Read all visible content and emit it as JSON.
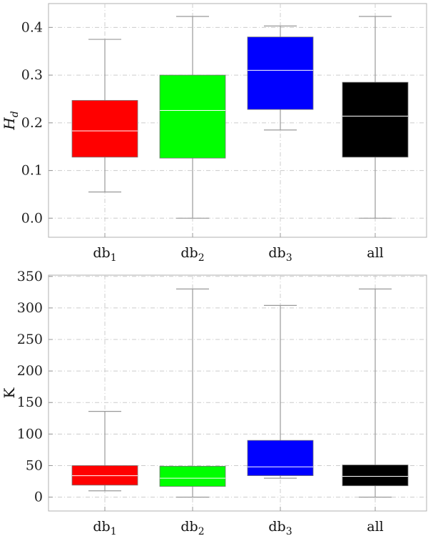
{
  "chart_data": [
    {
      "type": "box",
      "ylabel": "H",
      "ylabel_sub": "d",
      "categories": [
        {
          "base": "db",
          "sub": "1"
        },
        {
          "base": "db",
          "sub": "2"
        },
        {
          "base": "db",
          "sub": "3"
        },
        {
          "base": "all",
          "sub": ""
        }
      ],
      "series": [
        {
          "min": 0.055,
          "q1": 0.128,
          "median": 0.183,
          "q3": 0.247,
          "max": 0.375,
          "color": "#ff0000"
        },
        {
          "min": 0.0,
          "q1": 0.126,
          "median": 0.226,
          "q3": 0.3,
          "max": 0.423,
          "color": "#00ff00"
        },
        {
          "min": 0.185,
          "q1": 0.228,
          "median": 0.31,
          "q3": 0.38,
          "max": 0.403,
          "color": "#0000ff"
        },
        {
          "min": 0.0,
          "q1": 0.128,
          "median": 0.214,
          "q3": 0.285,
          "max": 0.423,
          "color": "#000000"
        }
      ],
      "ylim": [
        -0.04,
        0.45
      ],
      "yticks": [
        0.0,
        0.1,
        0.2,
        0.3,
        0.4
      ],
      "ytick_labels": [
        "0.0",
        "0.1",
        "0.2",
        "0.3",
        "0.4"
      ],
      "grid": true
    },
    {
      "type": "box",
      "ylabel": "K",
      "ylabel_sub": "",
      "categories": [
        {
          "base": "db",
          "sub": "1"
        },
        {
          "base": "db",
          "sub": "2"
        },
        {
          "base": "db",
          "sub": "3"
        },
        {
          "base": "all",
          "sub": ""
        }
      ],
      "series": [
        {
          "min": 10,
          "q1": 19,
          "median": 34,
          "q3": 50,
          "max": 136,
          "color": "#ff0000"
        },
        {
          "min": 0,
          "q1": 17,
          "median": 30,
          "q3": 49,
          "max": 330,
          "color": "#00ff00"
        },
        {
          "min": 30,
          "q1": 34,
          "median": 48,
          "q3": 90,
          "max": 304,
          "color": "#0000ff"
        },
        {
          "min": 0,
          "q1": 18,
          "median": 33,
          "q3": 51,
          "max": 330,
          "color": "#000000"
        }
      ],
      "ylim": [
        -22,
        352
      ],
      "yticks": [
        0,
        50,
        100,
        150,
        200,
        250,
        300,
        350
      ],
      "ytick_labels": [
        "0",
        "50",
        "100",
        "150",
        "200",
        "250",
        "300",
        "350"
      ],
      "grid": true
    }
  ]
}
